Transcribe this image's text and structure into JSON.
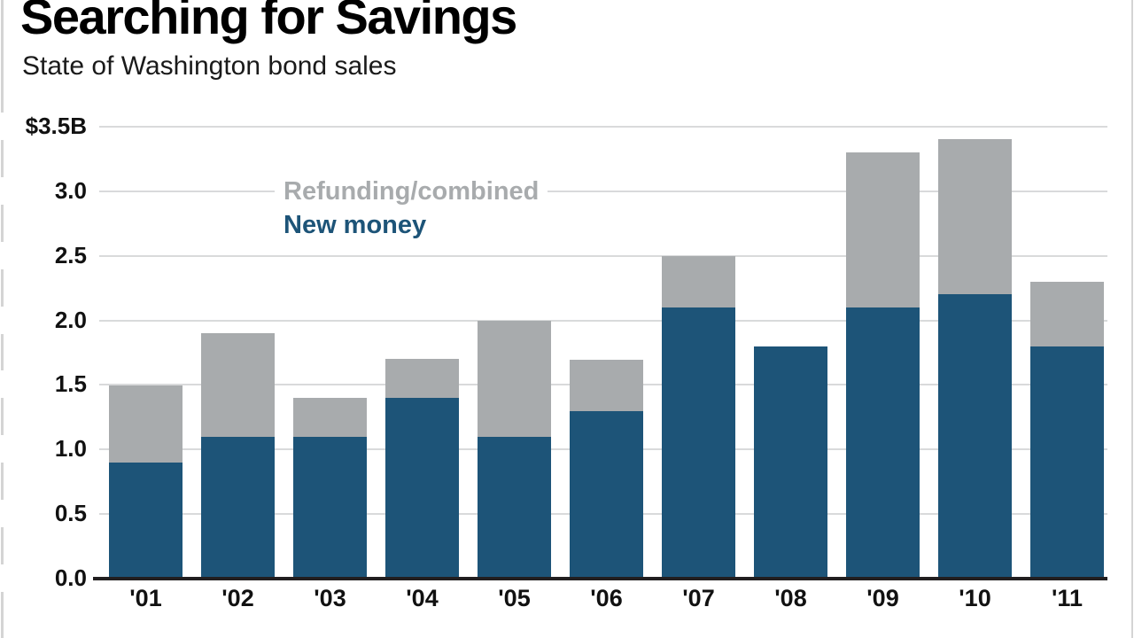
{
  "chart_data": {
    "type": "bar",
    "stacked": true,
    "title": "Searching for Savings",
    "subtitle": "State of Washington bond sales",
    "categories": [
      "'01",
      "'02",
      "'03",
      "'04",
      "'05",
      "'06",
      "'07",
      "'08",
      "'09",
      "'10",
      "'11"
    ],
    "series": [
      {
        "name": "New money",
        "color": "#1d5478",
        "values": [
          0.9,
          1.1,
          1.1,
          1.4,
          1.1,
          1.3,
          2.1,
          1.8,
          2.1,
          2.2,
          1.8
        ]
      },
      {
        "name": "Refunding/combined",
        "color": "#a8abad",
        "values": [
          0.6,
          0.8,
          0.3,
          0.3,
          0.9,
          0.4,
          0.4,
          0.0,
          1.2,
          1.2,
          0.5
        ]
      }
    ],
    "stack_totals": [
      1.5,
      1.9,
      1.4,
      1.7,
      2.0,
      1.7,
      2.5,
      1.8,
      3.3,
      3.4,
      2.3
    ],
    "y_axis": {
      "min": 0,
      "max": 3.5,
      "ticks": [
        {
          "label": "$3.5B",
          "value": 3.5
        },
        {
          "label": "3.0",
          "value": 3.0
        },
        {
          "label": "2.5",
          "value": 2.5
        },
        {
          "label": "2.0",
          "value": 2.0
        },
        {
          "label": "1.5",
          "value": 1.5
        },
        {
          "label": "1.0",
          "value": 1.0
        },
        {
          "label": "0.5",
          "value": 0.5
        },
        {
          "label": "0.0",
          "value": 0.0
        }
      ]
    },
    "grid": true,
    "legend": {
      "position": "inside-top-left",
      "entries": [
        {
          "label": "Refunding/combined",
          "color": "#a8abad"
        },
        {
          "label": "New money",
          "color": "#1d5478"
        }
      ]
    }
  },
  "colors": {
    "background": "#ffffff",
    "gridline": "#d9dadb",
    "axis_line": "#221f20",
    "frame_edge": "#d4d4d4",
    "title": "#000000",
    "subtitle": "#1a1a1a",
    "tick_label": "#111111"
  }
}
